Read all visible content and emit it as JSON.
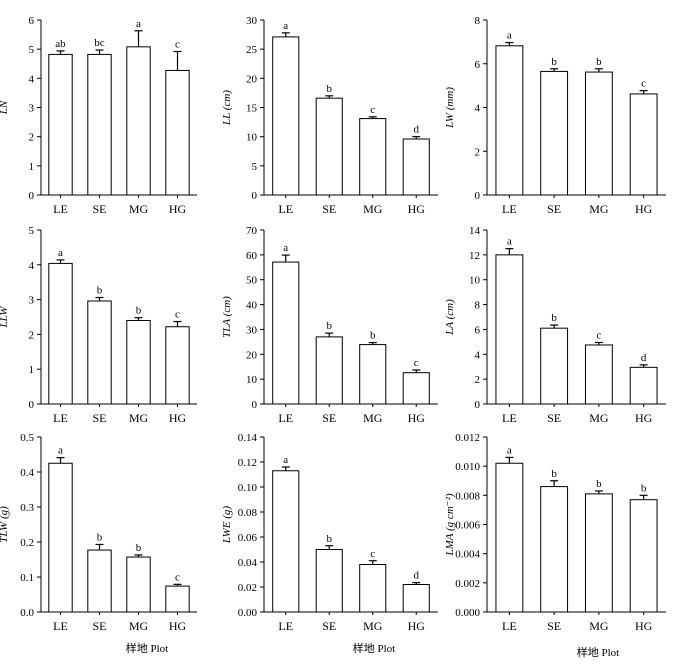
{
  "figure": {
    "xlabel": "样地 Plot"
  },
  "chart_data": [
    {
      "type": "bar",
      "ylabel": "LN",
      "categories": [
        "LE",
        "SE",
        "MG",
        "HG"
      ],
      "values": [
        4.82,
        4.82,
        5.08,
        4.27
      ],
      "errors": [
        0.12,
        0.15,
        0.55,
        0.65
      ],
      "letters": [
        "ab",
        "bc",
        "a",
        "c"
      ],
      "ylim": [
        0,
        6
      ],
      "yticks": [
        "0",
        "1",
        "2",
        "3",
        "4",
        "5",
        "6"
      ]
    },
    {
      "type": "bar",
      "ylabel": "LL (cm)",
      "categories": [
        "LE",
        "SE",
        "MG",
        "HG"
      ],
      "values": [
        27.1,
        16.6,
        13.1,
        9.6
      ],
      "errors": [
        0.7,
        0.4,
        0.3,
        0.4
      ],
      "letters": [
        "a",
        "b",
        "c",
        "d"
      ],
      "ylim": [
        0,
        30
      ],
      "yticks": [
        "0",
        "5",
        "10",
        "15",
        "20",
        "25",
        "30"
      ]
    },
    {
      "type": "bar",
      "ylabel": "LW (mm)",
      "categories": [
        "LE",
        "SE",
        "MG",
        "HG"
      ],
      "values": [
        6.82,
        5.65,
        5.62,
        4.62
      ],
      "errors": [
        0.15,
        0.12,
        0.15,
        0.15
      ],
      "letters": [
        "a",
        "b",
        "b",
        "c"
      ],
      "ylim": [
        0,
        8
      ],
      "yticks": [
        "0",
        "2",
        "4",
        "6",
        "8"
      ]
    },
    {
      "type": "bar",
      "ylabel": "LLW",
      "categories": [
        "LE",
        "SE",
        "MG",
        "HG"
      ],
      "values": [
        4.04,
        2.96,
        2.4,
        2.22
      ],
      "errors": [
        0.1,
        0.1,
        0.08,
        0.15
      ],
      "letters": [
        "a",
        "b",
        "b",
        "c"
      ],
      "ylim": [
        0,
        5
      ],
      "yticks": [
        "0",
        "1",
        "2",
        "3",
        "4",
        "5"
      ]
    },
    {
      "type": "bar",
      "ylabel": "TLA (cm)",
      "categories": [
        "LE",
        "SE",
        "MG",
        "HG"
      ],
      "values": [
        57.1,
        27.0,
        23.9,
        12.6
      ],
      "errors": [
        2.8,
        1.5,
        0.8,
        1.1
      ],
      "letters": [
        "a",
        "b",
        "b",
        "c"
      ],
      "ylim": [
        0,
        70
      ],
      "yticks": [
        "0",
        "10",
        "20",
        "30",
        "40",
        "50",
        "60",
        "70"
      ]
    },
    {
      "type": "bar",
      "ylabel": "LA (cm)",
      "categories": [
        "LE",
        "SE",
        "MG",
        "HG"
      ],
      "values": [
        12.0,
        6.1,
        4.75,
        2.95
      ],
      "errors": [
        0.5,
        0.25,
        0.2,
        0.2
      ],
      "letters": [
        "a",
        "b",
        "c",
        "d"
      ],
      "ylim": [
        0,
        14
      ],
      "yticks": [
        "0",
        "2",
        "4",
        "6",
        "8",
        "10",
        "12",
        "14"
      ]
    },
    {
      "type": "bar",
      "ylabel": "TLW (g)",
      "categories": [
        "LE",
        "SE",
        "MG",
        "HG"
      ],
      "values": [
        0.425,
        0.177,
        0.157,
        0.074
      ],
      "errors": [
        0.016,
        0.016,
        0.006,
        0.005
      ],
      "letters": [
        "a",
        "b",
        "b",
        "c"
      ],
      "ylim": [
        0,
        0.5
      ],
      "yticks": [
        "0.0",
        "0.1",
        "0.2",
        "0.3",
        "0.4",
        "0.5"
      ]
    },
    {
      "type": "bar",
      "ylabel": "LWE (g)",
      "categories": [
        "LE",
        "SE",
        "MG",
        "HG"
      ],
      "values": [
        0.113,
        0.05,
        0.038,
        0.022
      ],
      "errors": [
        0.003,
        0.003,
        0.003,
        0.0015
      ],
      "letters": [
        "a",
        "b",
        "c",
        "d"
      ],
      "ylim": [
        0,
        0.14
      ],
      "yticks": [
        "0.00",
        "0.02",
        "0.04",
        "0.06",
        "0.08",
        "0.10",
        "0.12",
        "0.14"
      ]
    },
    {
      "type": "bar",
      "ylabel": "LMA (g cm⁻²)",
      "categories": [
        "LE",
        "SE",
        "MG",
        "HG"
      ],
      "values": [
        0.0102,
        0.0086,
        0.0081,
        0.0077
      ],
      "errors": [
        0.0004,
        0.0004,
        0.0002,
        0.0003
      ],
      "letters": [
        "a",
        "b",
        "b",
        "b"
      ],
      "ylim": [
        0,
        0.012
      ],
      "yticks": [
        "0.000",
        "0.002",
        "0.004",
        "0.006",
        "0.008",
        "0.010",
        "0.012"
      ]
    }
  ]
}
